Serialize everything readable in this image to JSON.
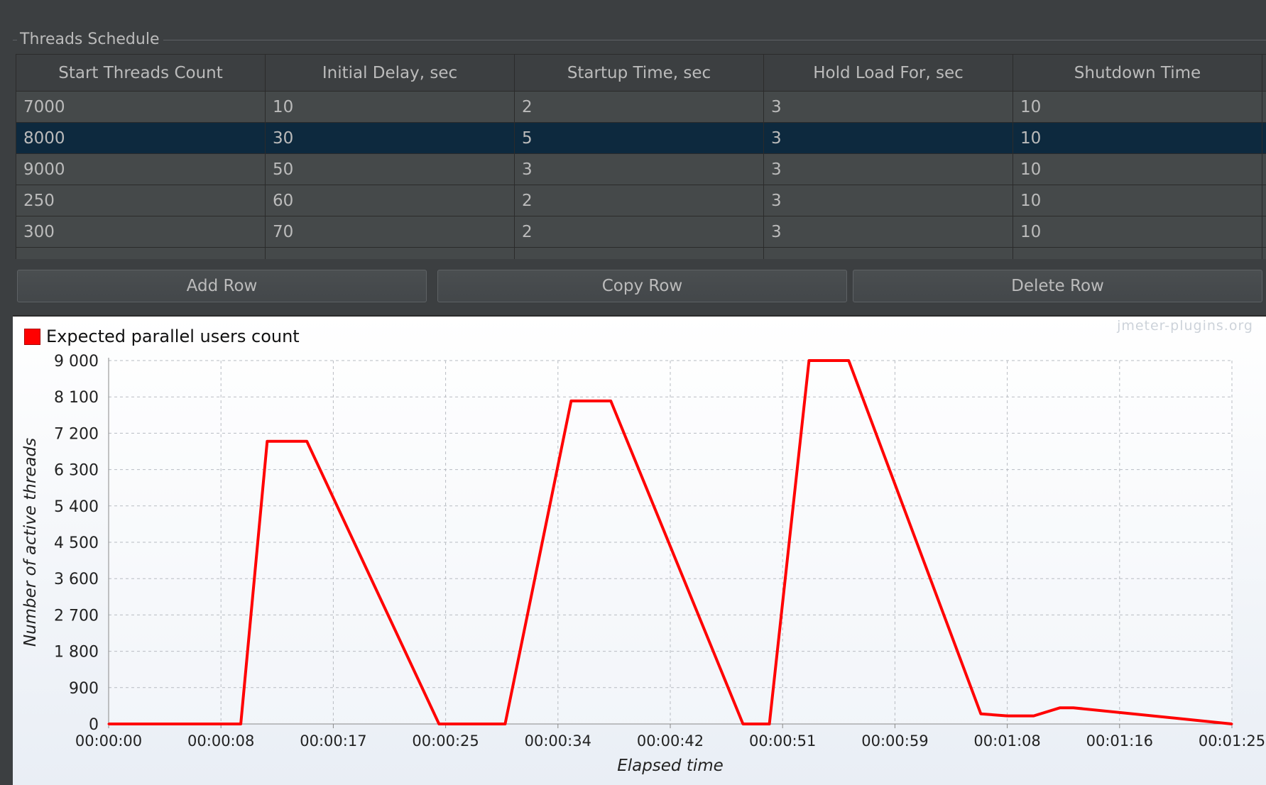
{
  "group": {
    "title": "Threads Schedule"
  },
  "table": {
    "columns": [
      "Start Threads Count",
      "Initial Delay, sec",
      "Startup Time, sec",
      "Hold Load For, sec",
      "Shutdown Time"
    ],
    "rows": [
      [
        "7000",
        "10",
        "2",
        "3",
        "10"
      ],
      [
        "8000",
        "30",
        "5",
        "3",
        "10"
      ],
      [
        "9000",
        "50",
        "3",
        "3",
        "10"
      ],
      [
        "250",
        "60",
        "2",
        "3",
        "10"
      ],
      [
        "300",
        "70",
        "2",
        "3",
        "10"
      ]
    ],
    "selected_row": 1
  },
  "buttons": {
    "add": "Add Row",
    "copy": "Copy Row",
    "delete": "Delete Row"
  },
  "watermark": "jmeter-plugins.org",
  "chart_data": {
    "type": "line",
    "series": [
      {
        "name": "Expected parallel users count",
        "color": "#ff0000",
        "points": [
          [
            0,
            0
          ],
          [
            10,
            0
          ],
          [
            12,
            7000
          ],
          [
            15,
            7000
          ],
          [
            25,
            0
          ],
          [
            30,
            0
          ],
          [
            35,
            8000
          ],
          [
            38,
            8000
          ],
          [
            48,
            0
          ],
          [
            50,
            0
          ],
          [
            53,
            9000
          ],
          [
            56,
            9000
          ],
          [
            66,
            250
          ],
          [
            68,
            200
          ],
          [
            70,
            200
          ],
          [
            72,
            400
          ],
          [
            73,
            400
          ],
          [
            85,
            0
          ]
        ]
      }
    ],
    "xlabel": "Elapsed time",
    "ylabel": "Number of active threads",
    "x_ticks": [
      "00:00:00",
      "00:00:08",
      "00:00:17",
      "00:00:25",
      "00:00:34",
      "00:00:42",
      "00:00:51",
      "00:00:59",
      "00:01:08",
      "00:01:16",
      "00:01:25"
    ],
    "y_ticks": [
      "0",
      "900",
      "1 800",
      "2 700",
      "3 600",
      "4 500",
      "5 400",
      "6 300",
      "7 200",
      "8 100",
      "9 000"
    ],
    "xlim": [
      0,
      85
    ],
    "ylim": [
      0,
      9000
    ],
    "grid": true,
    "legend_position": "top-left"
  }
}
